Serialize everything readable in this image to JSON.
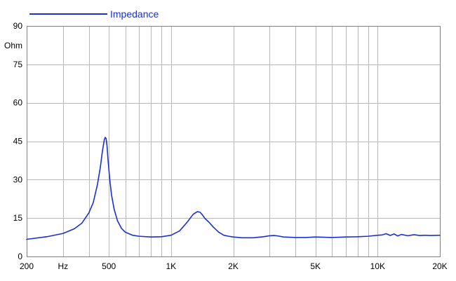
{
  "chart_data": {
    "type": "line",
    "title": "",
    "xlabel": "Hz",
    "ylabel": "Ohm",
    "xscale": "log",
    "xlim": [
      200,
      20000
    ],
    "ylim": [
      0,
      90
    ],
    "y_ticks": [
      0,
      15,
      30,
      45,
      60,
      75,
      90
    ],
    "x_tick_labels": [
      {
        "value": 200,
        "label": "200"
      },
      {
        "value": 300,
        "label": "Hz"
      },
      {
        "value": 500,
        "label": "500"
      },
      {
        "value": 1000,
        "label": "1K"
      },
      {
        "value": 2000,
        "label": "2K"
      },
      {
        "value": 5000,
        "label": "5K"
      },
      {
        "value": 10000,
        "label": "10K"
      },
      {
        "value": 20000,
        "label": "20K"
      }
    ],
    "grid": true,
    "legend_position": "top-left",
    "series": [
      {
        "name": "Impedance",
        "color": "#1a2fd6",
        "x": [
          200,
          250,
          300,
          340,
          370,
          400,
          420,
          440,
          455,
          465,
          475,
          480,
          485,
          490,
          495,
          505,
          515,
          530,
          550,
          575,
          600,
          650,
          700,
          800,
          900,
          1000,
          1100,
          1200,
          1280,
          1340,
          1380,
          1420,
          1460,
          1520,
          1600,
          1700,
          1800,
          1900,
          2000,
          2200,
          2500,
          2800,
          3000,
          3150,
          3300,
          3500,
          4000,
          4500,
          5000,
          5500,
          6000,
          6500,
          7000,
          8000,
          9000,
          9500,
          10000,
          10500,
          11000,
          11500,
          12000,
          12500,
          13000,
          14000,
          15000,
          16000,
          17000,
          18000,
          20000
        ],
        "y": [
          6.7,
          7.7,
          9.0,
          10.8,
          13.0,
          17.0,
          21.0,
          28.0,
          35.0,
          41.0,
          45.5,
          46.5,
          46.0,
          43.0,
          38.0,
          30.0,
          24.0,
          18.5,
          14.0,
          11.0,
          9.5,
          8.3,
          7.9,
          7.6,
          7.7,
          8.3,
          10.0,
          13.5,
          16.5,
          17.5,
          17.3,
          16.2,
          14.8,
          13.5,
          11.5,
          9.5,
          8.3,
          7.9,
          7.6,
          7.3,
          7.3,
          7.7,
          8.1,
          8.2,
          8.0,
          7.6,
          7.4,
          7.4,
          7.6,
          7.5,
          7.4,
          7.5,
          7.6,
          7.7,
          7.9,
          8.1,
          8.3,
          8.4,
          8.9,
          8.2,
          8.8,
          8.0,
          8.6,
          8.1,
          8.5,
          8.2,
          8.3,
          8.2,
          8.3
        ]
      }
    ]
  }
}
